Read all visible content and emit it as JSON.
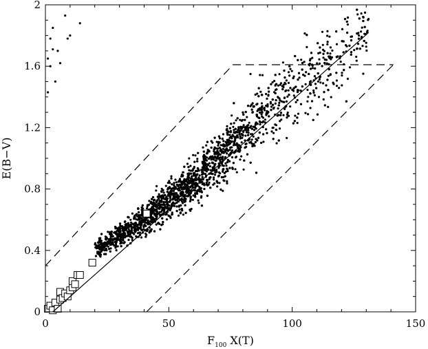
{
  "chart_data": {
    "type": "scatter",
    "title": "",
    "xlabel_main": "F",
    "xlabel_subscript": "100",
    "xlabel_rest": " X(T)",
    "ylabel": "E(B−V)",
    "xlim": [
      0,
      150
    ],
    "ylim": [
      0,
      2
    ],
    "xticks": [
      0,
      50,
      100,
      150
    ],
    "yticks": [
      0,
      0.4,
      0.8,
      1.2,
      1.6,
      2
    ],
    "ytick_labels": [
      "0",
      "0.4",
      "0.8",
      "1.2",
      "1.6",
      "2"
    ],
    "grid": false,
    "legend": "none",
    "point_color": "#000000",
    "fit_line": {
      "x": [
        3,
        131
      ],
      "y": [
        0.0,
        1.82
      ]
    },
    "upper_bound": {
      "x": [
        0,
        76,
        141
      ],
      "y": [
        0.3,
        1.61,
        1.61
      ]
    },
    "lower_bound": {
      "x": [
        41,
        141
      ],
      "y": [
        0.0,
        1.61
      ]
    },
    "scatter_cloud": {
      "centerline": [
        [
          20,
          0.4
        ],
        [
          40,
          0.6
        ],
        [
          60,
          0.85
        ],
        [
          80,
          1.15
        ],
        [
          100,
          1.45
        ],
        [
          115,
          1.65
        ]
      ],
      "x_range": [
        20,
        131
      ],
      "approx_points": 2600
    },
    "outlier_points": [
      [
        1,
        1.43
      ],
      [
        1,
        1.65
      ],
      [
        2,
        1.6
      ],
      [
        2,
        1.78
      ],
      [
        3,
        1.85
      ],
      [
        3,
        1.71
      ],
      [
        4,
        1.5
      ],
      [
        5,
        1.7
      ],
      [
        6,
        1.62
      ],
      [
        8,
        1.93
      ],
      [
        9,
        1.78
      ],
      [
        10,
        1.8
      ],
      [
        14,
        1.88
      ]
    ],
    "square_markers": [
      [
        1,
        0.02
      ],
      [
        2,
        0.04
      ],
      [
        3,
        0.01
      ],
      [
        4,
        0.06
      ],
      [
        5,
        0.02
      ],
      [
        6,
        0.08
      ],
      [
        6,
        0.13
      ],
      [
        7,
        0.09
      ],
      [
        8,
        0.12
      ],
      [
        9,
        0.1
      ],
      [
        10,
        0.14
      ],
      [
        11,
        0.16
      ],
      [
        11,
        0.2
      ],
      [
        12,
        0.18
      ],
      [
        13,
        0.24
      ],
      [
        14,
        0.24
      ],
      [
        19,
        0.32
      ],
      [
        41,
        0.64
      ]
    ]
  }
}
